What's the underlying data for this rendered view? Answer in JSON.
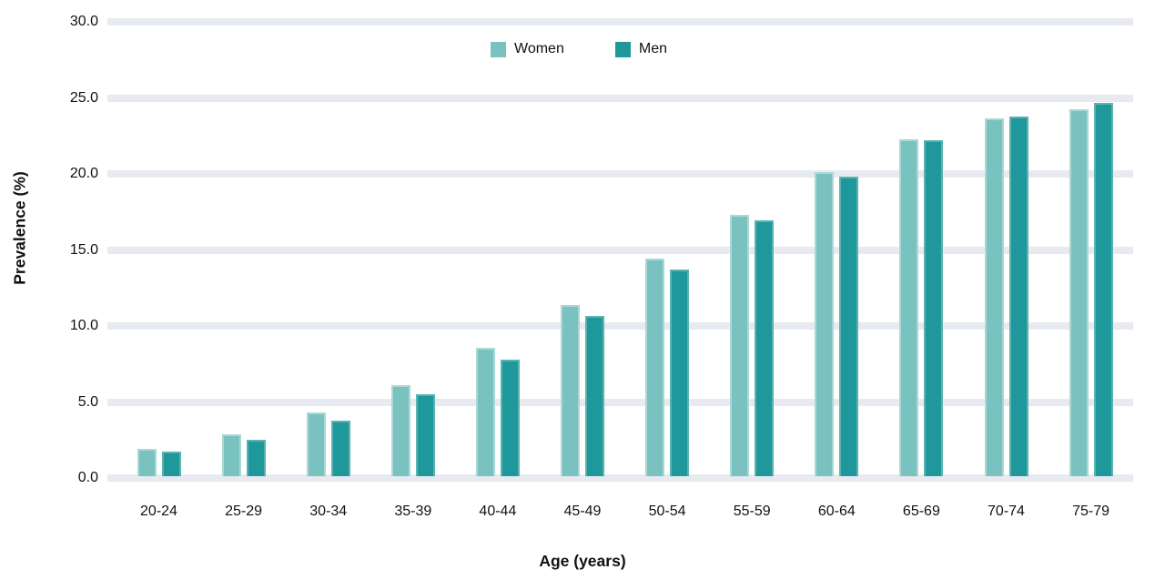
{
  "chart_data": {
    "type": "bar",
    "title": "",
    "xlabel": "Age (years)",
    "ylabel": "Prevalence (%)",
    "categories": [
      "20-24",
      "25-29",
      "30-34",
      "35-39",
      "40-44",
      "45-49",
      "50-54",
      "55-59",
      "60-64",
      "65-69",
      "70-74",
      "75-79"
    ],
    "series": [
      {
        "name": "Women",
        "color": "#7ac2c0",
        "border_color": "#aad8d5",
        "values": [
          1.8,
          2.8,
          4.2,
          6.0,
          8.5,
          11.3,
          14.4,
          17.3,
          20.1,
          22.3,
          23.7,
          24.3
        ]
      },
      {
        "name": "Men",
        "color": "#1e989a",
        "border_color": "#5cb2b0",
        "values": [
          1.6,
          2.4,
          3.7,
          5.4,
          7.7,
          10.6,
          13.7,
          16.9,
          19.8,
          22.2,
          23.8,
          24.7
        ]
      }
    ],
    "y_ticks": [
      {
        "value": 30,
        "label": "30.0"
      },
      {
        "value": 25,
        "label": "25.0"
      },
      {
        "value": 20,
        "label": "20.0"
      },
      {
        "value": 15,
        "label": "15.0"
      },
      {
        "value": 10,
        "label": "10.0"
      },
      {
        "value": 5,
        "label": "5.0"
      },
      {
        "value": 0,
        "label": "0.0"
      }
    ],
    "ylim": [
      0,
      30
    ],
    "grid": "horizontal-bands",
    "grid_color": "#e8eaf1",
    "legend_position": "top-center",
    "legend_entries": [
      "Women",
      "Men"
    ]
  }
}
